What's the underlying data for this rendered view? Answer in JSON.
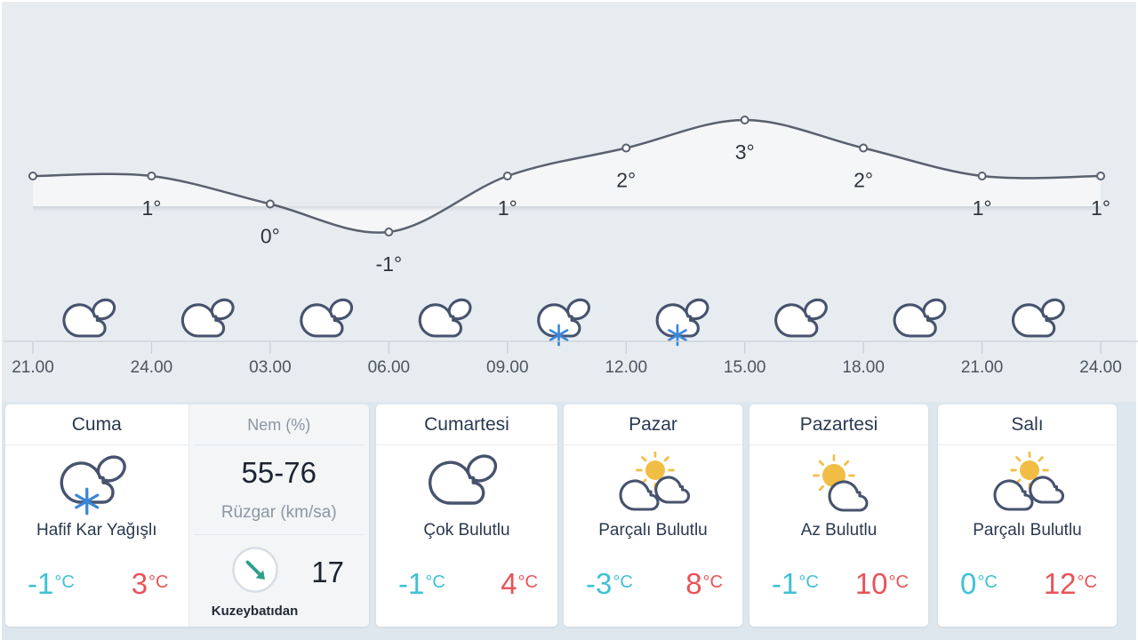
{
  "colors": {
    "chart_bg": "#e7ecf0",
    "cards_bg": "#dfe7ee",
    "line": "#59616f",
    "area_fill": "rgba(255,255,255,0.55)",
    "point_label": "#2e353d",
    "axis": "#c7cfd7",
    "axis_label": "#4b565f",
    "cloud_stroke": "#47536e",
    "snowflake": "#3a87d9",
    "sun": "#f2bd45",
    "min_temp": "#3fc1d5",
    "max_temp": "#e85358",
    "wind_arrow": "#2ba08c",
    "header_text": "#2a3950",
    "muted_label": "#8b97a3",
    "value_text": "#1b2430"
  },
  "chart_data": {
    "type": "line",
    "title": "",
    "x_tick_labels": [
      "21.00",
      "24.00",
      "03.00",
      "06.00",
      "09.00",
      "12.00",
      "15.00",
      "18.00",
      "21.00",
      "24.00"
    ],
    "temps_c": [
      1,
      1,
      0,
      -1,
      1,
      2,
      3,
      2,
      1,
      1
    ],
    "point_labels": [
      "",
      "1°",
      "0°",
      "-1°",
      "1°",
      "2°",
      "3°",
      "2°",
      "1°",
      "1°"
    ],
    "interval_weather_icons": [
      "cloudy",
      "cloudy",
      "cloudy",
      "cloudy",
      "light-snow",
      "light-snow",
      "cloudy",
      "cloudy",
      "cloudy"
    ],
    "ylim": [
      -3,
      4
    ],
    "grid": false,
    "legend": false
  },
  "temp_unit": "°C",
  "panel": {
    "humidity_label": "Nem (%)",
    "humidity_value": "55-76",
    "wind_label": "Rüzgar (km/sa)",
    "wind_direction": "Kuzeybatıdan",
    "wind_speed": "17"
  },
  "days": [
    {
      "name": "Cuma",
      "condition": "Hafif Kar Yağışlı",
      "icon": "snow-cloud",
      "min": "-1",
      "max": "3"
    },
    {
      "name": "Cumartesi",
      "condition": "Çok Bulutlu",
      "icon": "clouds",
      "min": "-1",
      "max": "4"
    },
    {
      "name": "Pazar",
      "condition": "Parçalı Bulutlu",
      "icon": "sun-clouds",
      "min": "-3",
      "max": "8"
    },
    {
      "name": "Pazartesi",
      "condition": "Az Bulutlu",
      "icon": "sun-small-cloud",
      "min": "-1",
      "max": "10"
    },
    {
      "name": "Salı",
      "condition": "Parçalı Bulutlu",
      "icon": "sun-clouds",
      "min": "0",
      "max": "12"
    }
  ]
}
